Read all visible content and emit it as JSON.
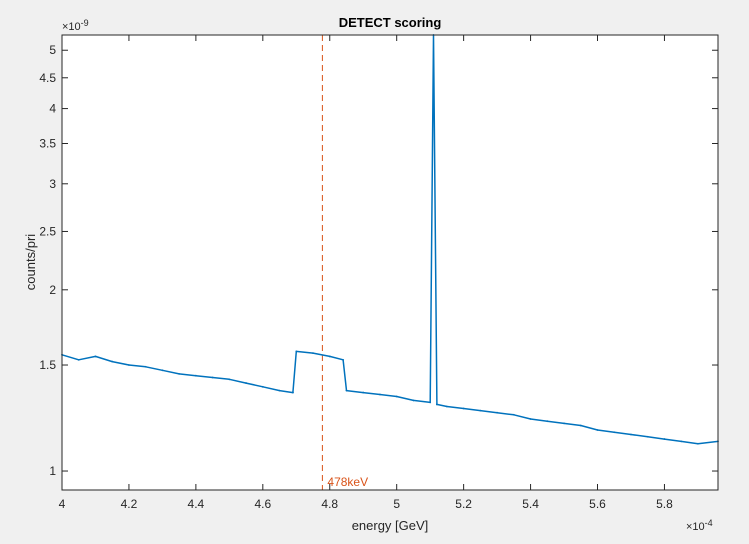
{
  "chart_data": {
    "type": "line",
    "title": "DETECT scoring",
    "xlabel": "energy [GeV]",
    "ylabel": "counts/pri",
    "x_multiplier_label": "×10",
    "x_multiplier_exp": "-4",
    "y_multiplier_label": "×10",
    "y_multiplier_exp": "-9",
    "xlim": [
      4.0,
      5.96
    ],
    "ylim": [
      0.93,
      5.3
    ],
    "yscale": "log",
    "grid": false,
    "x_ticks": [
      4,
      4.2,
      4.4,
      4.6,
      4.8,
      5,
      5.2,
      5.4,
      5.6,
      5.8
    ],
    "x_tick_labels": [
      "4",
      "4.2",
      "4.4",
      "4.6",
      "4.8",
      "5",
      "5.2",
      "5.4",
      "5.6",
      "5.8"
    ],
    "y_ticks": [
      1,
      1.5,
      2,
      2.5,
      3,
      3.5,
      4,
      4.5,
      5
    ],
    "y_tick_labels": [
      "1",
      "1.5",
      "2",
      "2.5",
      "3",
      "3.5",
      "4",
      "4.5",
      "5"
    ],
    "series": [
      {
        "color": "#0072bd",
        "x": [
          4.0,
          4.05,
          4.1,
          4.15,
          4.2,
          4.25,
          4.3,
          4.35,
          4.4,
          4.45,
          4.5,
          4.55,
          4.6,
          4.65,
          4.69,
          4.7,
          4.75,
          4.8,
          4.84,
          4.85,
          4.9,
          4.95,
          5.0,
          5.05,
          5.1,
          5.11,
          5.12,
          5.15,
          5.2,
          5.25,
          5.3,
          5.35,
          5.4,
          5.45,
          5.5,
          5.55,
          5.6,
          5.65,
          5.7,
          5.75,
          5.8,
          5.85,
          5.9,
          5.96
        ],
        "y": [
          1.56,
          1.53,
          1.55,
          1.52,
          1.5,
          1.49,
          1.47,
          1.45,
          1.44,
          1.43,
          1.42,
          1.4,
          1.38,
          1.36,
          1.35,
          1.58,
          1.57,
          1.55,
          1.53,
          1.36,
          1.35,
          1.34,
          1.33,
          1.31,
          1.3,
          5.3,
          1.29,
          1.28,
          1.27,
          1.26,
          1.25,
          1.24,
          1.22,
          1.21,
          1.2,
          1.19,
          1.17,
          1.16,
          1.15,
          1.14,
          1.13,
          1.12,
          1.11,
          1.12
        ]
      }
    ],
    "annotations": [
      {
        "x": 4.778,
        "label": "478keV",
        "color": "#d95319",
        "style": "dashed"
      }
    ]
  }
}
